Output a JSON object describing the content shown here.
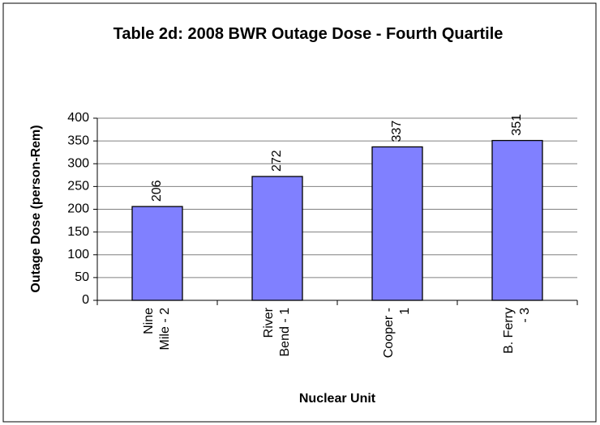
{
  "chart_data": {
    "type": "bar",
    "title": "Table 2d: 2008 BWR Outage Dose - Fourth Quartile",
    "categories": [
      "Nine Mile - 2",
      "River Bend - 1",
      "Cooper - 1",
      "B. Ferry - 3"
    ],
    "values": [
      206,
      272,
      337,
      351
    ],
    "color": "#8080ff",
    "x_label": "Nuclear Unit",
    "y_label": "Outage Dose (person-Rem)",
    "ylim": [
      0,
      400
    ],
    "yticks": [
      0,
      50,
      100,
      150,
      200,
      250,
      300,
      350,
      400
    ],
    "grid": true
  }
}
